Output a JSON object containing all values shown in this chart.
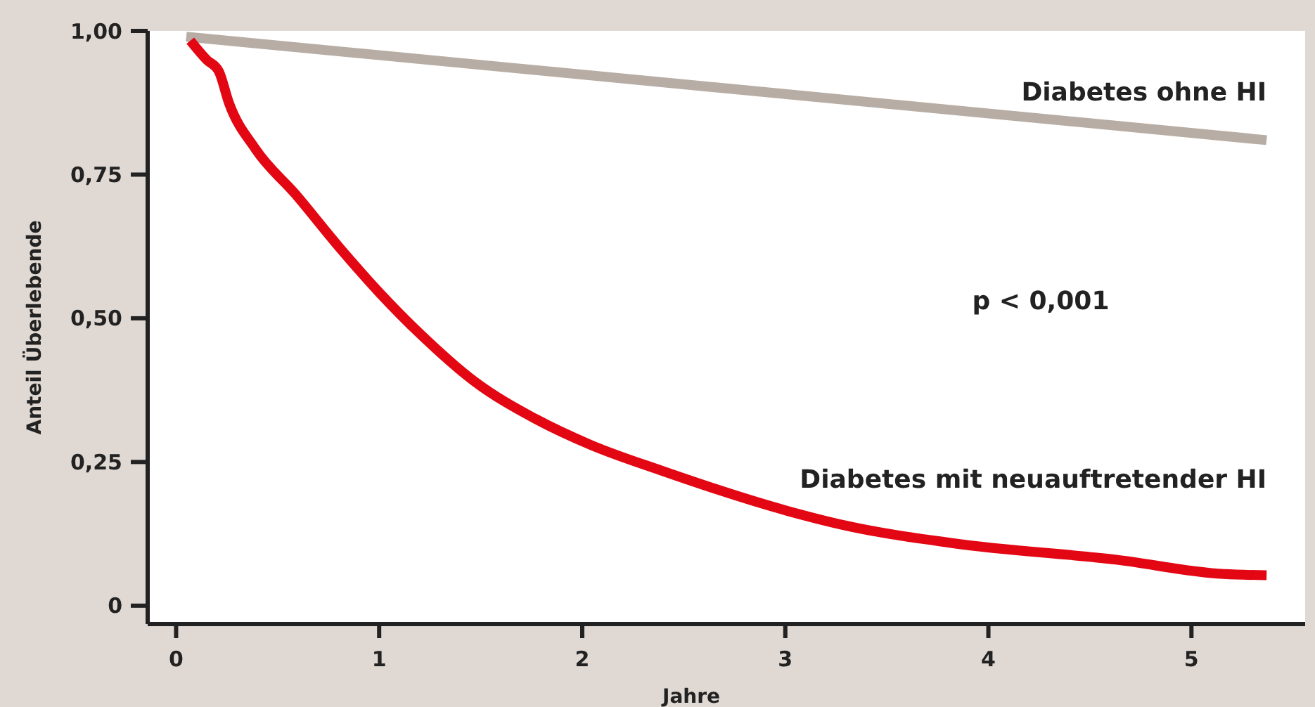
{
  "chart_data": {
    "type": "line",
    "xlabel": "Jahre",
    "ylabel": "Anteil Überlebende",
    "xlim": [
      -0.14,
      5.56
    ],
    "ylim": [
      -0.032,
      1.0
    ],
    "xticks": [
      0,
      1,
      2,
      3,
      4,
      5
    ],
    "yticks": [
      0,
      {
        "value": 0.25,
        "label": "0,25"
      },
      {
        "value": 0.5,
        "label": "0,50"
      },
      {
        "value": 0.75,
        "label": "0,75"
      },
      {
        "value": 1,
        "label": "1,00"
      }
    ],
    "grid": false,
    "marker": "none",
    "line_style": "solid",
    "annotations": [
      "p < 0,001"
    ],
    "series": [
      {
        "name": "Diabetes ohne HI",
        "color": "#b8ada4",
        "x": [
          0.05,
          5.37
        ],
        "values": [
          0.99,
          0.81
        ]
      },
      {
        "name": "Diabetes mit neuauftretender HI",
        "color": "#e30613",
        "x": [
          0.07,
          0.15,
          0.21,
          0.26,
          0.39,
          0.59,
          0.8,
          1.0,
          1.21,
          1.47,
          1.77,
          2.04,
          2.39,
          3.01,
          3.29,
          3.84,
          4.63,
          5.16,
          5.37
        ],
        "values": [
          0.983,
          0.95,
          0.93,
          0.875,
          0.795,
          0.715,
          0.625,
          0.545,
          0.47,
          0.39,
          0.325,
          0.28,
          0.235,
          0.165,
          0.14,
          0.108,
          0.08,
          0.055,
          0.053
        ]
      }
    ]
  }
}
